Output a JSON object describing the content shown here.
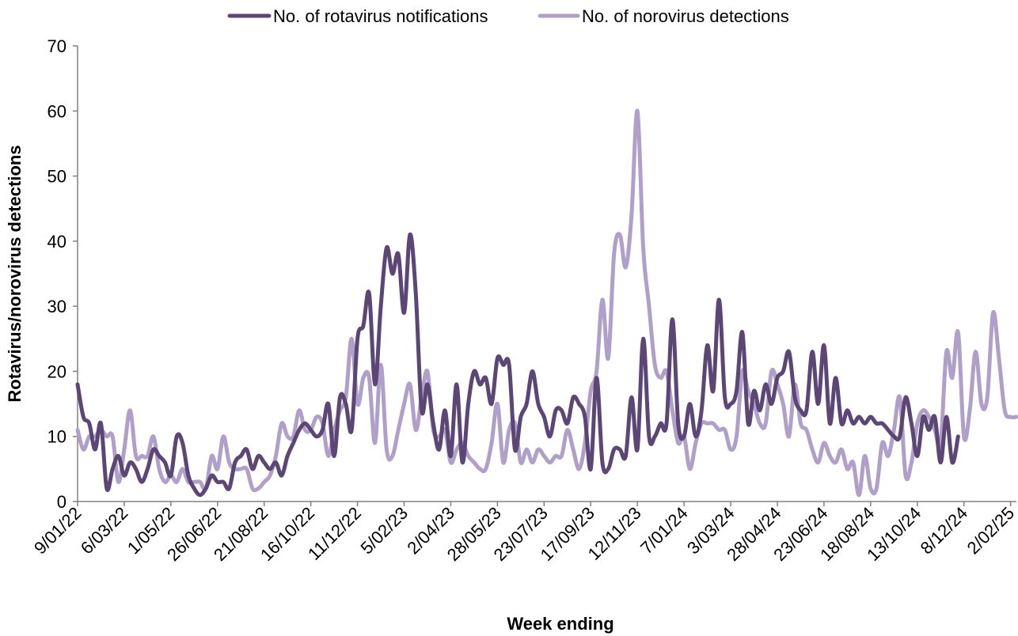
{
  "chart_data": {
    "type": "line",
    "xlabel": "Week ending",
    "ylabel": "Rotavirus/norovirus  detections",
    "ylim": [
      0,
      70
    ],
    "yticks": [
      0,
      10,
      20,
      30,
      40,
      50,
      60,
      70
    ],
    "xticks": [
      "9/01/22",
      "6/03/22",
      "1/05/22",
      "26/06/22",
      "21/08/22",
      "16/10/22",
      "11/12/22",
      "5/02/23",
      "2/04/23",
      "28/05/23",
      "23/07/23",
      "17/09/23",
      "12/11/23",
      "7/01/24",
      "3/03/24",
      "28/04/24",
      "23/06/24",
      "18/08/24",
      "13/10/24",
      "8/12/24",
      "2/02/25"
    ],
    "grid": false,
    "legend_position": "top",
    "x_start": "9/01/22",
    "x_step_weeks": 1,
    "series": [
      {
        "name": "No. of rotavirus notifications",
        "color": "#5b4676",
        "values": [
          18,
          13,
          12,
          8,
          12,
          2,
          5,
          7,
          4,
          6,
          5,
          3,
          5,
          8,
          7,
          6,
          4,
          10,
          9,
          4,
          2,
          1,
          2,
          4,
          3,
          3,
          2,
          6,
          7,
          8,
          5,
          7,
          6,
          5,
          6,
          4,
          7,
          9,
          11,
          12,
          11,
          10,
          11,
          15,
          7,
          16,
          15,
          11,
          25,
          27,
          32,
          18,
          30,
          39,
          35,
          38,
          29,
          41,
          32,
          14,
          18,
          12,
          8,
          14,
          7,
          18,
          6,
          15,
          20,
          18,
          19,
          15,
          22,
          21,
          21,
          8,
          13,
          15,
          20,
          15,
          13,
          10,
          14,
          14,
          12,
          16,
          15,
          13,
          5,
          19,
          6,
          5,
          8,
          8,
          7,
          16,
          8,
          25,
          10,
          10,
          12,
          12,
          28,
          12,
          10,
          15,
          10,
          14,
          24,
          17,
          31,
          16,
          15,
          17,
          26,
          12,
          17,
          14,
          18,
          15,
          19,
          20,
          23,
          16,
          14,
          14,
          23,
          15,
          24,
          12,
          19,
          12,
          14,
          12,
          13,
          12,
          13,
          12,
          12,
          11,
          10,
          10,
          16,
          12,
          7,
          13,
          11,
          13,
          6,
          13,
          6,
          10
        ]
      },
      {
        "name": "No. of norovirus detections",
        "color": "#b09fc8",
        "values": [
          11,
          8,
          10,
          10,
          11,
          10,
          10,
          3,
          8,
          14,
          7,
          7,
          7,
          10,
          5,
          3,
          4,
          3,
          5,
          3,
          3,
          3,
          2,
          7,
          5,
          10,
          6,
          5,
          5,
          5,
          2,
          2,
          3,
          4,
          7,
          12,
          10,
          10,
          14,
          11,
          11,
          13,
          12,
          7,
          11,
          14,
          16,
          25,
          15,
          19,
          19,
          9,
          21,
          8,
          7,
          11,
          15,
          18,
          11,
          16,
          20,
          11,
          10,
          11,
          6,
          8,
          9,
          7,
          6,
          5,
          5,
          9,
          15,
          6,
          11,
          12,
          6,
          8,
          6,
          8,
          7,
          6,
          7,
          7,
          11,
          8,
          5,
          9,
          17,
          20,
          31,
          22,
          38,
          41,
          36,
          44,
          60,
          39,
          30,
          21,
          19,
          20,
          14,
          9,
          10,
          5,
          9,
          12,
          12,
          12,
          11,
          11,
          8,
          10,
          20,
          17,
          15,
          12,
          12,
          20,
          18,
          15,
          10,
          18,
          12,
          11,
          8,
          6,
          9,
          7,
          6,
          8,
          5,
          6,
          1,
          7,
          2,
          2,
          9,
          7,
          11,
          16,
          4,
          6,
          12,
          14,
          13,
          11,
          9,
          23,
          19,
          26,
          10,
          14,
          23,
          15,
          16,
          29,
          22,
          14,
          13,
          13
        ]
      }
    ]
  }
}
